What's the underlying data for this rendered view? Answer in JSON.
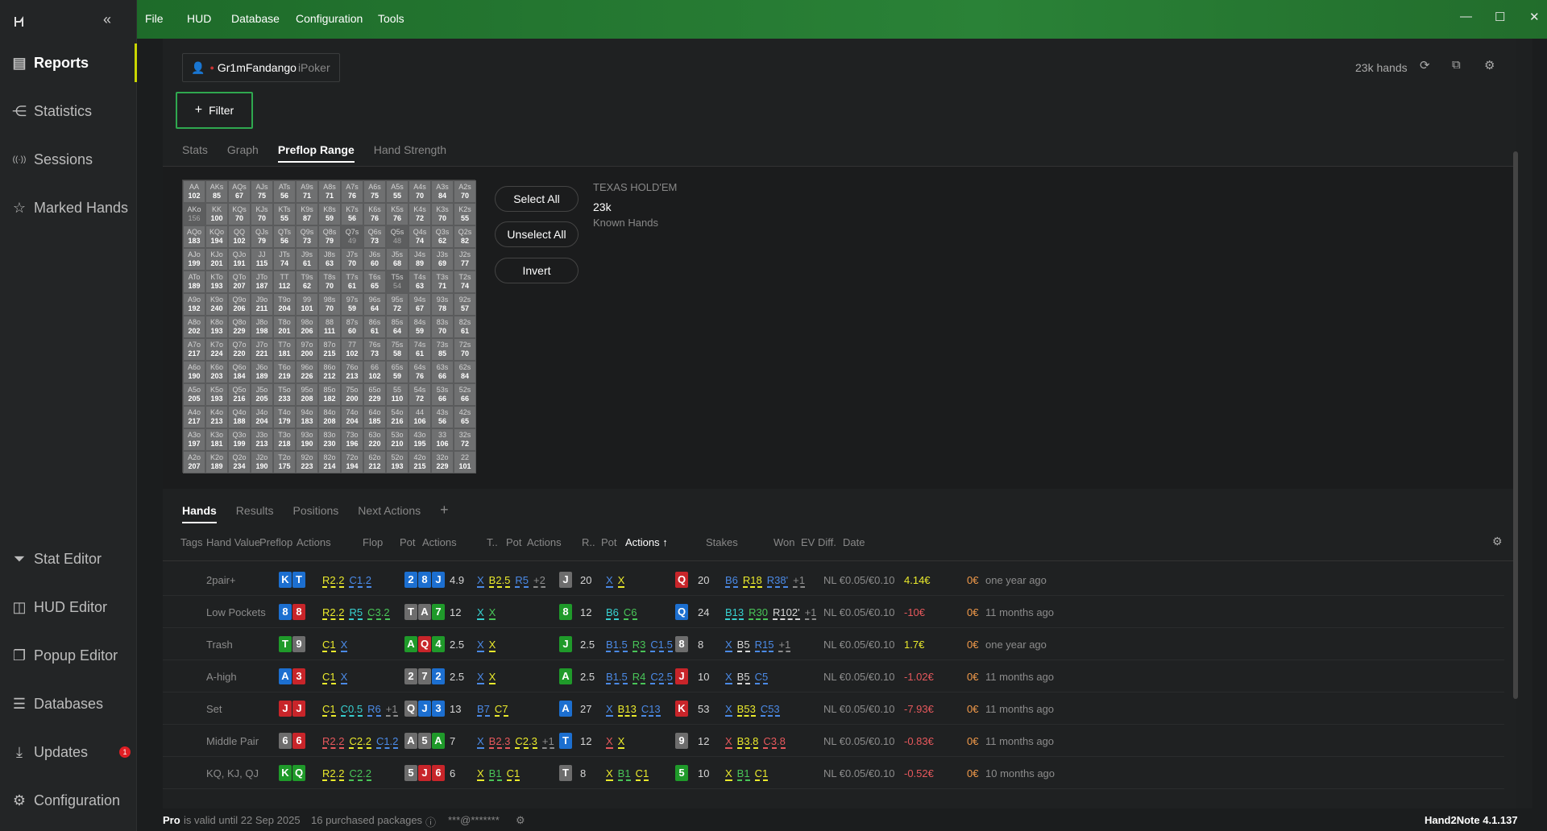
{
  "sidebar": {
    "collapse": "«",
    "items": [
      {
        "label": "Reports",
        "icon": "report-icon"
      },
      {
        "label": "Statistics",
        "icon": "statistics-icon"
      },
      {
        "label": "Sessions",
        "icon": "sessions-icon"
      },
      {
        "label": "Marked Hands",
        "icon": "star-icon"
      },
      {
        "label": "Stat Editor",
        "icon": "funnel-icon"
      },
      {
        "label": "HUD Editor",
        "icon": "hud-icon"
      },
      {
        "label": "Popup Editor",
        "icon": "popup-icon"
      },
      {
        "label": "Databases",
        "icon": "database-icon"
      },
      {
        "label": "Updates",
        "icon": "download-icon",
        "badge": "1"
      },
      {
        "label": "Configuration",
        "icon": "gear-icon"
      }
    ]
  },
  "menu": [
    "File",
    "HUD",
    "Database",
    "Configuration",
    "Tools"
  ],
  "window": {
    "min": "—",
    "max": "☐",
    "close": "✕"
  },
  "player": {
    "name": "Gr1mFandango",
    "site": "iPoker"
  },
  "filter_label": "Filter",
  "hands_count": "23k hands",
  "tabs_top": [
    "Stats",
    "Graph",
    "Preflop Range",
    "Hand Strength"
  ],
  "range": {
    "hands": [
      [
        "AA",
        "AKs",
        "AQs",
        "AJs",
        "ATs",
        "A9s",
        "A8s",
        "A7s",
        "A6s",
        "A5s",
        "A4s",
        "A3s",
        "A2s"
      ],
      [
        "AKo",
        "KK",
        "KQs",
        "KJs",
        "KTs",
        "K9s",
        "K8s",
        "K7s",
        "K6s",
        "K5s",
        "K4s",
        "K3s",
        "K2s"
      ],
      [
        "AQo",
        "KQo",
        "QQ",
        "QJs",
        "QTs",
        "Q9s",
        "Q8s",
        "Q7s",
        "Q6s",
        "Q5s",
        "Q4s",
        "Q3s",
        "Q2s"
      ],
      [
        "AJo",
        "KJo",
        "QJo",
        "JJ",
        "JTs",
        "J9s",
        "J8s",
        "J7s",
        "J6s",
        "J5s",
        "J4s",
        "J3s",
        "J2s"
      ],
      [
        "ATo",
        "KTo",
        "QTo",
        "JTo",
        "TT",
        "T9s",
        "T8s",
        "T7s",
        "T6s",
        "T5s",
        "T4s",
        "T3s",
        "T2s"
      ],
      [
        "A9o",
        "K9o",
        "Q9o",
        "J9o",
        "T9o",
        "99",
        "98s",
        "97s",
        "96s",
        "95s",
        "94s",
        "93s",
        "92s"
      ],
      [
        "A8o",
        "K8o",
        "Q8o",
        "J8o",
        "T8o",
        "98o",
        "88",
        "87s",
        "86s",
        "85s",
        "84s",
        "83s",
        "82s"
      ],
      [
        "A7o",
        "K7o",
        "Q7o",
        "J7o",
        "T7o",
        "97o",
        "87o",
        "77",
        "76s",
        "75s",
        "74s",
        "73s",
        "72s"
      ],
      [
        "A6o",
        "K6o",
        "Q6o",
        "J6o",
        "T6o",
        "96o",
        "86o",
        "76o",
        "66",
        "65s",
        "64s",
        "63s",
        "62s"
      ],
      [
        "A5o",
        "K5o",
        "Q5o",
        "J5o",
        "T5o",
        "95o",
        "85o",
        "75o",
        "65o",
        "55",
        "54s",
        "53s",
        "52s"
      ],
      [
        "A4o",
        "K4o",
        "Q4o",
        "J4o",
        "T4o",
        "94o",
        "84o",
        "74o",
        "64o",
        "54o",
        "44",
        "43s",
        "42s"
      ],
      [
        "A3o",
        "K3o",
        "Q3o",
        "J3o",
        "T3o",
        "93o",
        "83o",
        "73o",
        "63o",
        "53o",
        "43o",
        "33",
        "32s"
      ],
      [
        "A2o",
        "K2o",
        "Q2o",
        "J2o",
        "T2o",
        "92o",
        "82o",
        "72o",
        "62o",
        "52o",
        "42o",
        "32o",
        "22"
      ]
    ],
    "counts": [
      [
        "102",
        "85",
        "67",
        "75",
        "56",
        "71",
        "71",
        "76",
        "75",
        "55",
        "70",
        "84",
        "70"
      ],
      [
        "156",
        "100",
        "70",
        "70",
        "55",
        "87",
        "59",
        "56",
        "76",
        "76",
        "72",
        "70",
        "55"
      ],
      [
        "183",
        "194",
        "102",
        "79",
        "56",
        "73",
        "79",
        "49",
        "73",
        "48",
        "74",
        "62",
        "82"
      ],
      [
        "199",
        "201",
        "191",
        "115",
        "74",
        "61",
        "63",
        "70",
        "60",
        "68",
        "89",
        "69",
        "77"
      ],
      [
        "189",
        "193",
        "207",
        "187",
        "112",
        "62",
        "70",
        "61",
        "65",
        "54",
        "63",
        "71",
        "74"
      ],
      [
        "192",
        "240",
        "206",
        "211",
        "204",
        "101",
        "70",
        "59",
        "64",
        "72",
        "67",
        "78",
        "57"
      ],
      [
        "202",
        "193",
        "229",
        "198",
        "201",
        "206",
        "111",
        "60",
        "61",
        "64",
        "59",
        "70",
        "61"
      ],
      [
        "217",
        "224",
        "220",
        "221",
        "181",
        "200",
        "215",
        "102",
        "73",
        "58",
        "61",
        "85",
        "70"
      ],
      [
        "190",
        "203",
        "184",
        "189",
        "219",
        "226",
        "212",
        "213",
        "102",
        "59",
        "76",
        "66",
        "84"
      ],
      [
        "205",
        "193",
        "216",
        "205",
        "233",
        "208",
        "182",
        "200",
        "229",
        "110",
        "72",
        "66",
        "66"
      ],
      [
        "217",
        "213",
        "188",
        "204",
        "179",
        "183",
        "208",
        "204",
        "185",
        "216",
        "106",
        "56",
        "65"
      ],
      [
        "197",
        "181",
        "199",
        "213",
        "218",
        "190",
        "230",
        "196",
        "220",
        "210",
        "195",
        "106",
        "72"
      ],
      [
        "207",
        "189",
        "234",
        "190",
        "175",
        "223",
        "214",
        "194",
        "212",
        "193",
        "215",
        "229",
        "101"
      ]
    ],
    "dim": [
      [
        1,
        0
      ],
      [
        2,
        7
      ],
      [
        2,
        9
      ],
      [
        4,
        9
      ]
    ],
    "buttons": [
      "Select All",
      "Unselect All",
      "Invert"
    ],
    "game": "TEXAS HOLD'EM",
    "known": "23k",
    "known_label": "Known Hands"
  },
  "tabs_bottom": [
    "Hands",
    "Results",
    "Positions",
    "Next Actions"
  ],
  "add_tab": "+",
  "columns": [
    "Tags",
    "Hand Value",
    "Preflop",
    "Actions",
    "Flop",
    "Pot",
    "Actions",
    "T..",
    "Pot",
    "Actions",
    "R..",
    "Pot",
    "Actions ↑",
    "Stakes",
    "Won",
    "EV Diff.",
    "Date"
  ],
  "rows": [
    {
      "value": "2pair+",
      "pre": [
        [
          "K",
          "d"
        ],
        [
          "T",
          "d"
        ]
      ],
      "pre_act": [
        [
          "R2.2",
          "yl"
        ],
        [
          "C1.2",
          "bl"
        ]
      ],
      "flop": [
        [
          "2",
          "d"
        ],
        [
          "8",
          "d"
        ],
        [
          "J",
          "d"
        ]
      ],
      "fpot": "4.9",
      "f_act": [
        [
          "X",
          "bl"
        ],
        [
          "B2.5",
          "yl"
        ],
        [
          "R5",
          "bl"
        ],
        [
          "+2",
          "gr"
        ]
      ],
      "turn": [
        [
          "J",
          "s"
        ]
      ],
      "tpot": "20",
      "t_act": [
        [
          "X",
          "bl"
        ],
        [
          "X",
          "yl"
        ]
      ],
      "river": [
        [
          "Q",
          "h"
        ]
      ],
      "rpot": "20",
      "r_act": [
        [
          "B6",
          "bl"
        ],
        [
          "R18",
          "yl"
        ],
        [
          "R38'",
          "bl"
        ],
        [
          "+1",
          "gr"
        ]
      ],
      "stakes": "NL €0.05/€0.10",
      "won": "4.14€",
      "won_c": "yl",
      "ev": "0€",
      "date": "one year ago"
    },
    {
      "value": "Low Pockets",
      "pre": [
        [
          "8",
          "d"
        ],
        [
          "8",
          "h"
        ]
      ],
      "pre_act": [
        [
          "R2.2",
          "yl"
        ],
        [
          "R5",
          "cy"
        ],
        [
          "C3.2",
          "gn"
        ]
      ],
      "flop": [
        [
          "T",
          "s"
        ],
        [
          "A",
          "s"
        ],
        [
          "7",
          "c"
        ]
      ],
      "fpot": "12",
      "f_act": [
        [
          "X",
          "cy"
        ],
        [
          "X",
          "gn"
        ]
      ],
      "turn": [
        [
          "8",
          "c"
        ]
      ],
      "tpot": "12",
      "t_act": [
        [
          "B6",
          "cy"
        ],
        [
          "C6",
          "gn"
        ]
      ],
      "river": [
        [
          "Q",
          "d"
        ]
      ],
      "rpot": "24",
      "r_act": [
        [
          "B13",
          "cy"
        ],
        [
          "R30",
          "gn"
        ],
        [
          "R102'",
          "wh"
        ],
        [
          "+1",
          "gr"
        ]
      ],
      "stakes": "NL €0.05/€0.10",
      "won": "-10€",
      "won_c": "rd",
      "ev": "0€",
      "date": "11 months ago"
    },
    {
      "value": "Trash",
      "pre": [
        [
          "T",
          "c"
        ],
        [
          "9",
          "s"
        ]
      ],
      "pre_act": [
        [
          "C1",
          "yl"
        ],
        [
          "X",
          "bl"
        ]
      ],
      "flop": [
        [
          "A",
          "c"
        ],
        [
          "Q",
          "h"
        ],
        [
          "4",
          "c"
        ]
      ],
      "fpot": "2.5",
      "f_act": [
        [
          "X",
          "bl"
        ],
        [
          "X",
          "yl"
        ]
      ],
      "turn": [
        [
          "J",
          "c"
        ]
      ],
      "tpot": "2.5",
      "t_act": [
        [
          "B1.5",
          "bl"
        ],
        [
          "R3",
          "gn"
        ],
        [
          "C1.5",
          "bl"
        ]
      ],
      "river": [
        [
          "8",
          "s"
        ]
      ],
      "rpot": "8",
      "r_act": [
        [
          "X",
          "bl"
        ],
        [
          "B5",
          "wh"
        ],
        [
          "R15",
          "bl"
        ],
        [
          "+1",
          "gr"
        ]
      ],
      "stakes": "NL €0.05/€0.10",
      "won": "1.7€",
      "won_c": "yl",
      "ev": "0€",
      "date": "one year ago"
    },
    {
      "value": "A-high",
      "pre": [
        [
          "A",
          "d"
        ],
        [
          "3",
          "h"
        ]
      ],
      "pre_act": [
        [
          "C1",
          "yl"
        ],
        [
          "X",
          "bl"
        ]
      ],
      "flop": [
        [
          "2",
          "s"
        ],
        [
          "7",
          "s"
        ],
        [
          "2",
          "d"
        ]
      ],
      "fpot": "2.5",
      "f_act": [
        [
          "X",
          "bl"
        ],
        [
          "X",
          "yl"
        ]
      ],
      "turn": [
        [
          "A",
          "c"
        ]
      ],
      "tpot": "2.5",
      "t_act": [
        [
          "B1.5",
          "bl"
        ],
        [
          "R4",
          "gn"
        ],
        [
          "C2.5",
          "bl"
        ]
      ],
      "river": [
        [
          "J",
          "h"
        ]
      ],
      "rpot": "10",
      "r_act": [
        [
          "X",
          "bl"
        ],
        [
          "B5",
          "wh"
        ],
        [
          "C5",
          "bl"
        ]
      ],
      "stakes": "NL €0.05/€0.10",
      "won": "-1.02€",
      "won_c": "rd",
      "ev": "0€",
      "date": "11 months ago"
    },
    {
      "value": "Set",
      "pre": [
        [
          "J",
          "h"
        ],
        [
          "J",
          "h"
        ]
      ],
      "pre_act": [
        [
          "C1",
          "yl"
        ],
        [
          "C0.5",
          "cy"
        ],
        [
          "R6",
          "bl"
        ],
        [
          "+1",
          "gr"
        ]
      ],
      "flop": [
        [
          "Q",
          "s"
        ],
        [
          "J",
          "d"
        ],
        [
          "3",
          "d"
        ]
      ],
      "fpot": "13",
      "f_act": [
        [
          "B7",
          "bl"
        ],
        [
          "C7",
          "yl"
        ]
      ],
      "turn": [
        [
          "A",
          "d"
        ]
      ],
      "tpot": "27",
      "t_act": [
        [
          "X",
          "bl"
        ],
        [
          "B13",
          "yl"
        ],
        [
          "C13",
          "bl"
        ]
      ],
      "river": [
        [
          "K",
          "h"
        ]
      ],
      "rpot": "53",
      "r_act": [
        [
          "X",
          "bl"
        ],
        [
          "B53",
          "yl"
        ],
        [
          "C53",
          "bl"
        ]
      ],
      "stakes": "NL €0.05/€0.10",
      "won": "-7.93€",
      "won_c": "rd",
      "ev": "0€",
      "date": "11 months ago"
    },
    {
      "value": "Middle Pair",
      "pre": [
        [
          "6",
          "s"
        ],
        [
          "6",
          "h"
        ]
      ],
      "pre_act": [
        [
          "R2.2",
          "rd"
        ],
        [
          "C2.2",
          "yl"
        ],
        [
          "C1.2",
          "bl"
        ]
      ],
      "flop": [
        [
          "A",
          "s"
        ],
        [
          "5",
          "s"
        ],
        [
          "A",
          "c"
        ]
      ],
      "fpot": "7",
      "f_act": [
        [
          "X",
          "bl"
        ],
        [
          "B2.3",
          "rd"
        ],
        [
          "C2.3",
          "yl"
        ],
        [
          "+1",
          "gr"
        ]
      ],
      "turn": [
        [
          "T",
          "d"
        ]
      ],
      "tpot": "12",
      "t_act": [
        [
          "X",
          "rd"
        ],
        [
          "X",
          "yl"
        ]
      ],
      "river": [
        [
          "9",
          "s"
        ]
      ],
      "rpot": "12",
      "r_act": [
        [
          "X",
          "rd"
        ],
        [
          "B3.8",
          "yl"
        ],
        [
          "C3.8",
          "rd"
        ]
      ],
      "stakes": "NL €0.05/€0.10",
      "won": "-0.83€",
      "won_c": "rd",
      "ev": "0€",
      "date": "11 months ago"
    },
    {
      "value": "KQ, KJ, QJ",
      "pre": [
        [
          "K",
          "c"
        ],
        [
          "Q",
          "c"
        ]
      ],
      "pre_act": [
        [
          "R2.2",
          "yl"
        ],
        [
          "C2.2",
          "gn"
        ]
      ],
      "flop": [
        [
          "5",
          "s"
        ],
        [
          "J",
          "h"
        ],
        [
          "6",
          "h"
        ]
      ],
      "fpot": "6",
      "f_act": [
        [
          "X",
          "yl"
        ],
        [
          "B1",
          "gn"
        ],
        [
          "C1",
          "yl"
        ]
      ],
      "turn": [
        [
          "T",
          "s"
        ]
      ],
      "tpot": "8",
      "t_act": [
        [
          "X",
          "yl"
        ],
        [
          "B1",
          "gn"
        ],
        [
          "C1",
          "yl"
        ]
      ],
      "river": [
        [
          "5",
          "c"
        ]
      ],
      "rpot": "10",
      "r_act": [
        [
          "X",
          "yl"
        ],
        [
          "B1",
          "gn"
        ],
        [
          "C1",
          "yl"
        ]
      ],
      "stakes": "NL €0.05/€0.10",
      "won": "-0.52€",
      "won_c": "rd",
      "ev": "0€",
      "date": "10 months ago"
    }
  ],
  "status": {
    "pro": "Pro",
    "valid": "is valid until 22 Sep 2025",
    "packages": "16 purchased packages",
    "info_icon": "ⓘ",
    "email": "***@*******",
    "version": "Hand2Note 4.1.137"
  }
}
